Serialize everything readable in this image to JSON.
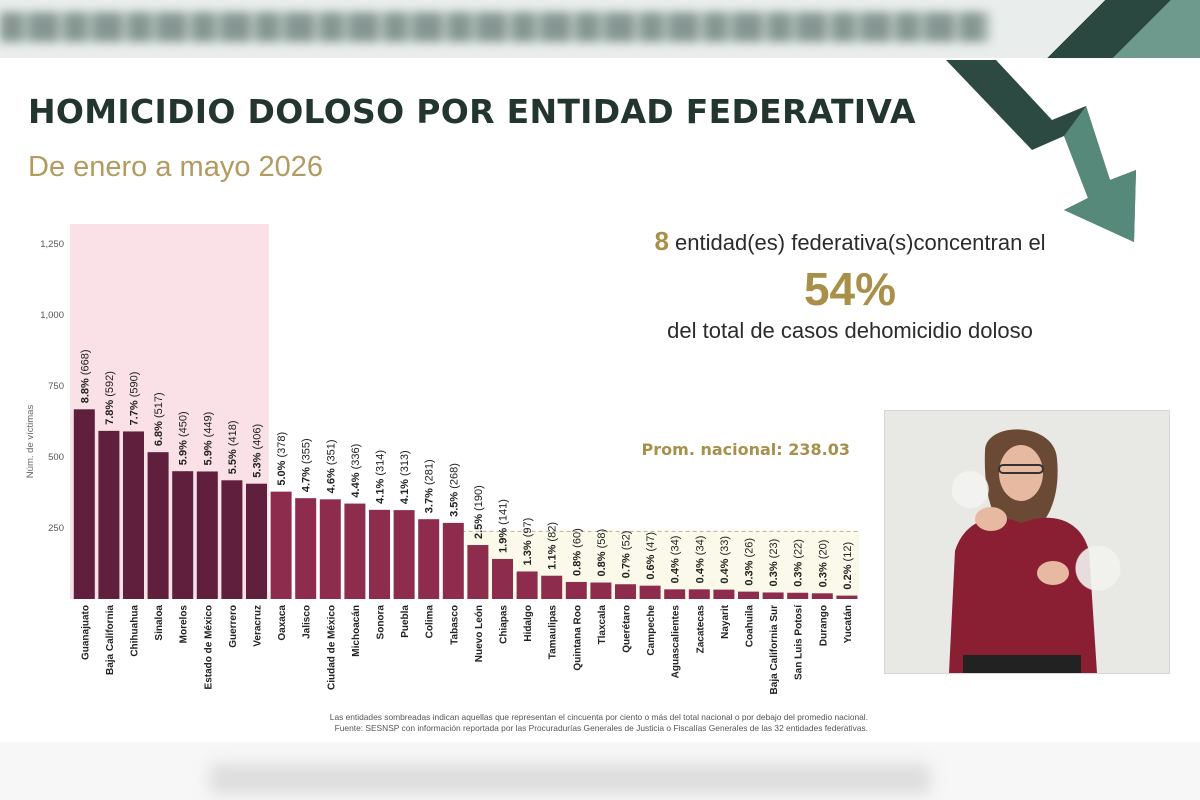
{
  "header": {
    "title": "HOMICIDIO DOLOSO POR ENTIDAD FEDERATIVA",
    "subtitle": "De enero a mayo 2026"
  },
  "summary": {
    "count": "8",
    "line1": "entidad(es) federativa(s)concentran el",
    "percent": "54%",
    "line3": "del total de casos dehomicidio doloso"
  },
  "footnotes": [
    "Las entidades sombreadas indican aquellas que representan el cincuenta por ciento o más del total nacional o por debajo del promedio nacional.",
    "Fuente: SESNSP con información reportada por las Procuradurías Generales de Justicia o Fiscalías Generales de las 32 entidades federativas."
  ],
  "colors": {
    "top_bar": "#611f3e",
    "bar": "#8e2c4e",
    "top_region": "#f9e1e7",
    "below_avg_region": "#fbfaea",
    "average_label": "#a88f4a",
    "title": "#22362f",
    "subtitle": "#b39b5f"
  },
  "chart_data": {
    "type": "bar",
    "ylabel": "Núm. de víctimas",
    "ylim": [
      0,
      1250
    ],
    "yticks": [
      250,
      500,
      750,
      1000,
      1250
    ],
    "ytick_labels": [
      "250",
      "500",
      "750",
      "1,000",
      "1,250"
    ],
    "categories": [
      "Guanajuato",
      "Baja California",
      "Chihuahua",
      "Sinaloa",
      "Morelos",
      "Estado de México",
      "Guerrero",
      "Veracruz",
      "Oaxaca",
      "Jalisco",
      "Ciudad de México",
      "Michoacán",
      "Sonora",
      "Puebla",
      "Colima",
      "Tabasco",
      "Nuevo León",
      "Chiapas",
      "Hidalgo",
      "Tamaulipas",
      "Quintana Roo",
      "Tlaxcala",
      "Querétaro",
      "Campeche",
      "Aguascalientes",
      "Zacatecas",
      "Nayarit",
      "Coahuila",
      "Baja California Sur",
      "San Luis Potosí",
      "Durango",
      "Yucatán"
    ],
    "values": [
      668,
      592,
      590,
      517,
      450,
      449,
      418,
      406,
      378,
      355,
      351,
      336,
      314,
      313,
      281,
      268,
      190,
      141,
      97,
      82,
      60,
      58,
      52,
      47,
      34,
      34,
      33,
      26,
      23,
      22,
      20,
      12
    ],
    "percent_labels": [
      "8.8%",
      "7.8%",
      "7.7%",
      "6.8%",
      "5.9%",
      "5.9%",
      "5.5%",
      "5.3%",
      "5.0%",
      "4.7%",
      "4.6%",
      "4.4%",
      "4.1%",
      "4.1%",
      "3.7%",
      "3.5%",
      "2.5%",
      "1.9%",
      "1.3%",
      "1.1%",
      "0.8%",
      "0.8%",
      "0.7%",
      "0.6%",
      "0.4%",
      "0.4%",
      "0.4%",
      "0.3%",
      "0.3%",
      "0.3%",
      "0.3%",
      "0.2%"
    ],
    "count_labels": [
      "(668)",
      "(592)",
      "(590)",
      "(517)",
      "(450)",
      "(449)",
      "(418)",
      "(406)",
      "(378)",
      "(355)",
      "(351)",
      "(336)",
      "(314)",
      "(313)",
      "(281)",
      "(268)",
      "(190)",
      "(141)",
      "(97)",
      "(82)",
      "(60)",
      "(58)",
      "(52)",
      "(47)",
      "(34)",
      "(34)",
      "(33)",
      "(26)",
      "(23)",
      "(22)",
      "(20)",
      "(12)"
    ],
    "highlighted_count": 8,
    "average": 238.03,
    "average_label": "Prom. nacional: 238.03"
  }
}
